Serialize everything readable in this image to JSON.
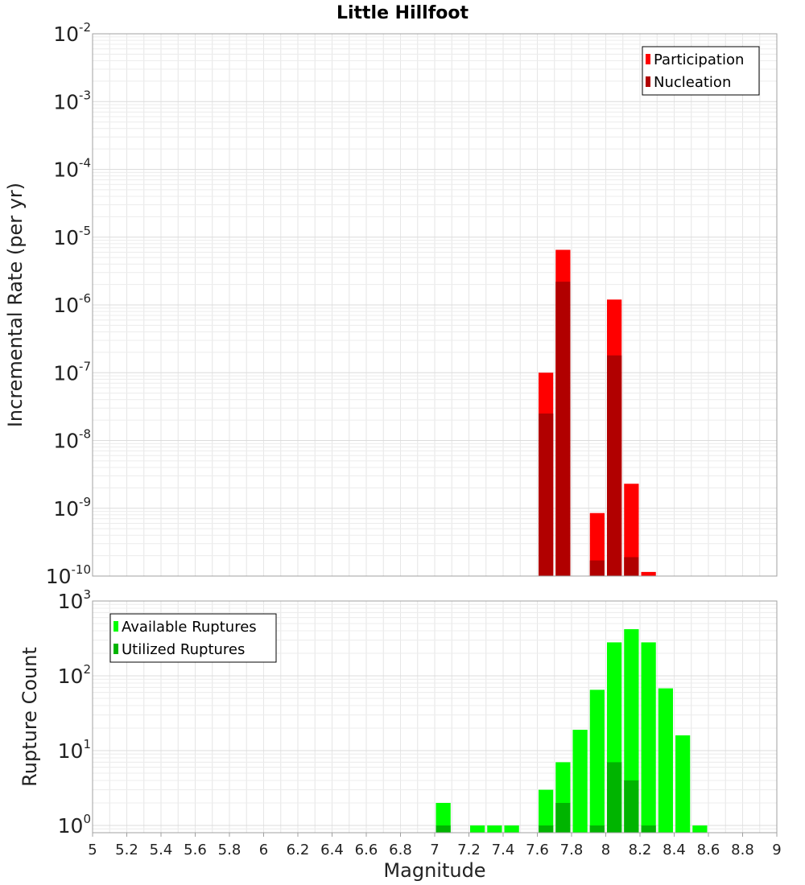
{
  "chart_data": [
    {
      "type": "bar",
      "title": "Little Hillfoot",
      "xlabel": "",
      "ylabel": "Incremental Rate (per yr)",
      "x_range": [
        5,
        9
      ],
      "ylim": [
        1e-10,
        0.01
      ],
      "y_scale": "log",
      "grid": true,
      "legend_position": "top-right",
      "x": [
        7.65,
        7.75,
        7.95,
        8.05,
        8.15,
        8.25
      ],
      "series": [
        {
          "name": "Participation",
          "color": "#ff0000",
          "values": [
            1e-07,
            6.5e-06,
            8.5e-10,
            1.2e-06,
            2.3e-09,
            1.15e-10
          ]
        },
        {
          "name": "Nucleation",
          "color": "#b10000",
          "values": [
            2.5e-08,
            2.2e-06,
            1.7e-10,
            1.8e-07,
            1.9e-10,
            null
          ]
        }
      ],
      "y_tick_base": "10",
      "y_tick_exponents": [
        "-10",
        "-9",
        "-8",
        "-7",
        "-6",
        "-5",
        "-4",
        "-3",
        "-2"
      ]
    },
    {
      "type": "bar",
      "title": "",
      "xlabel": "Magnitude",
      "ylabel": "Rupture Count",
      "x_range": [
        5,
        9
      ],
      "ylim": [
        0.8,
        1000
      ],
      "y_scale": "log",
      "grid": true,
      "legend_position": "top-left",
      "x": [
        7.05,
        7.25,
        7.35,
        7.45,
        7.65,
        7.75,
        7.85,
        7.95,
        8.05,
        8.15,
        8.25,
        8.35,
        8.45,
        8.55
      ],
      "series": [
        {
          "name": "Available Ruptures",
          "color": "#00ff00",
          "values": [
            2,
            1,
            1,
            1,
            3,
            7,
            19,
            65,
            280,
            420,
            280,
            68,
            16,
            1
          ]
        },
        {
          "name": "Utilized Ruptures",
          "color": "#00b400",
          "values": [
            1,
            null,
            null,
            null,
            1,
            2,
            null,
            1,
            7,
            4,
            1,
            null,
            null,
            null
          ]
        }
      ],
      "y_tick_base": "10",
      "y_tick_exponents": [
        "0",
        "1",
        "2",
        "3"
      ],
      "x_ticks": [
        "5",
        "5.2",
        "5.4",
        "5.6",
        "5.8",
        "6",
        "6.2",
        "6.4",
        "6.6",
        "6.8",
        "7",
        "7.2",
        "7.4",
        "7.6",
        "7.8",
        "8",
        "8.2",
        "8.4",
        "8.6",
        "8.8",
        "9"
      ]
    }
  ]
}
